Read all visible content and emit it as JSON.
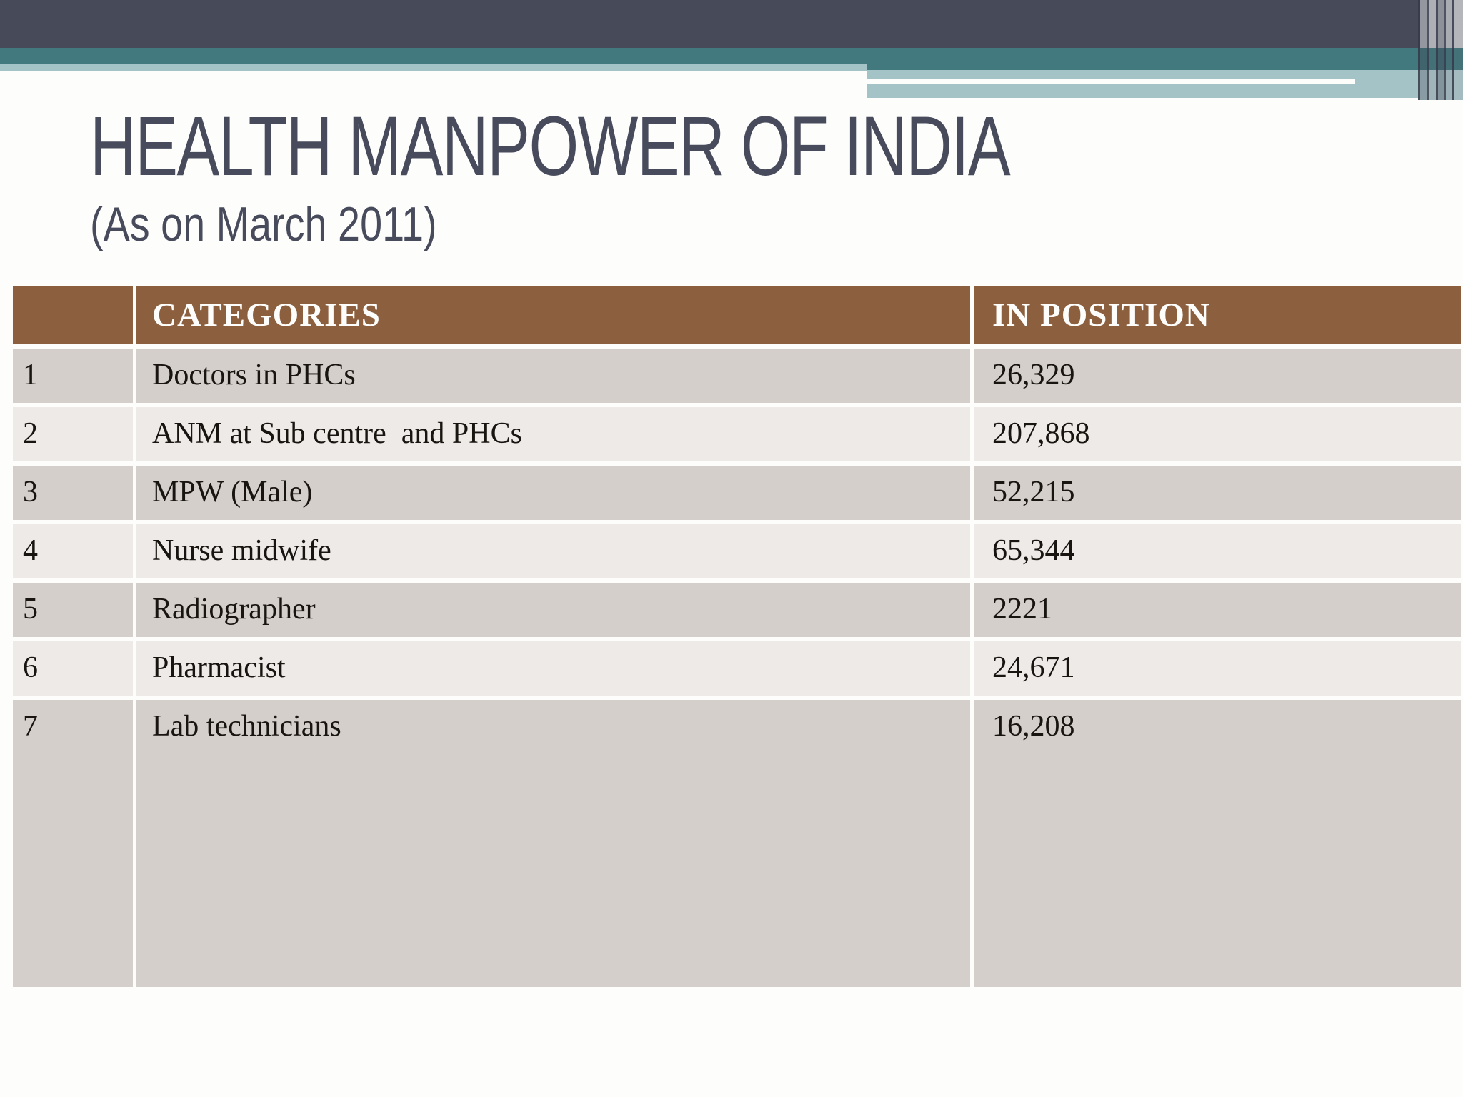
{
  "slide": {
    "title": "HEALTH MANPOWER OF INDIA",
    "subtitle": "(As on March 2011)"
  },
  "table": {
    "headers": {
      "index": "",
      "categories": "CATEGORIES",
      "in_position": "IN POSITION"
    },
    "rows": [
      {
        "no": "1",
        "category": "Doctors in PHCs",
        "in_position": "26,329"
      },
      {
        "no": "2",
        "category": "ANM at Sub centre  and PHCs",
        "in_position": "207,868"
      },
      {
        "no": "3",
        "category": "MPW (Male)",
        "in_position": "52,215"
      },
      {
        "no": "4",
        "category": "Nurse midwife",
        "in_position": "65,344"
      },
      {
        "no": "5",
        "category": "Radiographer",
        "in_position": "2221"
      },
      {
        "no": "6",
        "category": "Pharmacist",
        "in_position": "24,671"
      },
      {
        "no": "7",
        "category": "Lab technicians",
        "in_position": "16,208"
      }
    ]
  },
  "colors": {
    "banner_dark": "#474a59",
    "banner_teal": "#41797f",
    "banner_light_teal": "#a4c3c7",
    "header_brown": "#8c5f3e",
    "row_dark": "#d5cfcc",
    "row_light": "#edeae8",
    "title_text": "#474b5c",
    "body_text": "#181410",
    "header_text": "#fdfdfc"
  }
}
